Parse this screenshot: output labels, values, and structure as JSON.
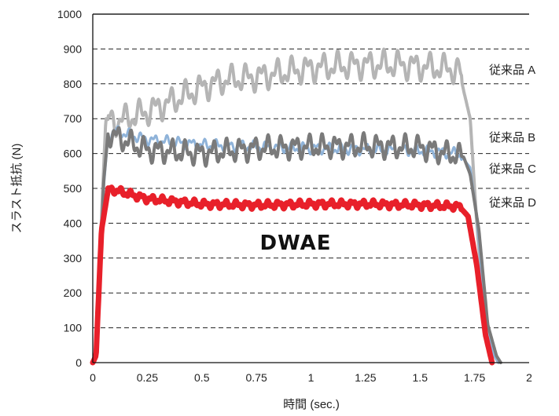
{
  "chart_data": {
    "type": "line",
    "xlabel": "時間 (sec.)",
    "ylabel": "スラスト抵抗 (N)",
    "xlim": [
      0,
      2
    ],
    "ylim": [
      0,
      1000
    ],
    "x_ticks": [
      "0",
      "0.25",
      "0.5",
      "0.75",
      "1",
      "1.25",
      "1.5",
      "1.75",
      "2"
    ],
    "y_ticks": [
      "0",
      "100",
      "200",
      "300",
      "400",
      "500",
      "600",
      "700",
      "800",
      "900",
      "1000"
    ],
    "grid": "dashed horizontal",
    "series": [
      {
        "name": "従来品 A",
        "color": "#b5b5b5",
        "points": [
          [
            0,
            0
          ],
          [
            0.02,
            30
          ],
          [
            0.04,
            420
          ],
          [
            0.06,
            700
          ],
          [
            0.1,
            690
          ],
          [
            0.25,
            720
          ],
          [
            0.4,
            760
          ],
          [
            0.5,
            790
          ],
          [
            0.6,
            810
          ],
          [
            0.75,
            820
          ],
          [
            0.9,
            835
          ],
          [
            1.0,
            845
          ],
          [
            1.1,
            850
          ],
          [
            1.25,
            855
          ],
          [
            1.4,
            855
          ],
          [
            1.5,
            850
          ],
          [
            1.6,
            845
          ],
          [
            1.68,
            840
          ],
          [
            1.7,
            780
          ],
          [
            1.73,
            700
          ],
          [
            1.76,
            400
          ],
          [
            1.8,
            100
          ],
          [
            1.84,
            20
          ],
          [
            1.86,
            0
          ]
        ]
      },
      {
        "name": "従来品 B",
        "color": "#8fb3d9",
        "points": [
          [
            0,
            0
          ],
          [
            0.02,
            30
          ],
          [
            0.05,
            500
          ],
          [
            0.07,
            650
          ],
          [
            0.1,
            665
          ],
          [
            0.25,
            640
          ],
          [
            0.5,
            625
          ],
          [
            0.75,
            620
          ],
          [
            1.0,
            615
          ],
          [
            1.25,
            612
          ],
          [
            1.5,
            608
          ],
          [
            1.68,
            600
          ],
          [
            1.73,
            560
          ],
          [
            1.76,
            420
          ],
          [
            1.8,
            120
          ],
          [
            1.84,
            20
          ],
          [
            1.86,
            0
          ]
        ]
      },
      {
        "name": "従来品 C",
        "color": "#7a7a7a",
        "points": [
          [
            0,
            0
          ],
          [
            0.02,
            30
          ],
          [
            0.05,
            520
          ],
          [
            0.07,
            660
          ],
          [
            0.1,
            650
          ],
          [
            0.25,
            610
          ],
          [
            0.5,
            600
          ],
          [
            0.75,
            615
          ],
          [
            1.0,
            620
          ],
          [
            1.25,
            622
          ],
          [
            1.5,
            618
          ],
          [
            1.7,
            590
          ],
          [
            1.73,
            540
          ],
          [
            1.77,
            380
          ],
          [
            1.81,
            110
          ],
          [
            1.85,
            20
          ],
          [
            1.87,
            0
          ]
        ]
      },
      {
        "name": "従来品 D",
        "color": "#e8202a",
        "points": [
          [
            0,
            0
          ],
          [
            0.015,
            20
          ],
          [
            0.04,
            380
          ],
          [
            0.07,
            495
          ],
          [
            0.1,
            495
          ],
          [
            0.25,
            470
          ],
          [
            0.5,
            455
          ],
          [
            0.75,
            452
          ],
          [
            1.0,
            455
          ],
          [
            1.25,
            455
          ],
          [
            1.5,
            452
          ],
          [
            1.68,
            448
          ],
          [
            1.72,
            420
          ],
          [
            1.76,
            280
          ],
          [
            1.8,
            80
          ],
          [
            1.83,
            0
          ]
        ]
      }
    ],
    "legend_labels": [
      "従来品 A",
      "従来品 B",
      "従来品 C",
      "従来品 D"
    ],
    "annotations": [
      {
        "text": "DWAE"
      }
    ]
  }
}
